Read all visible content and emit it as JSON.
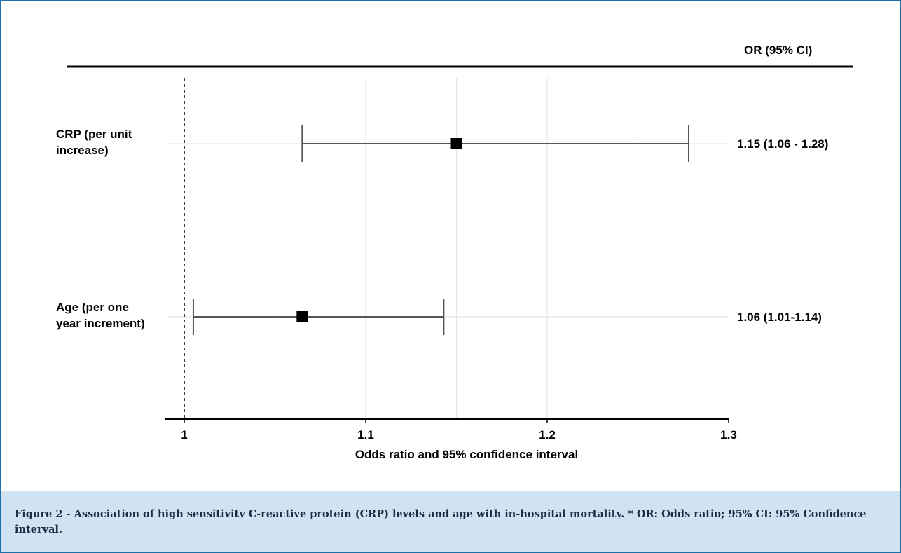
{
  "chart_data": {
    "type": "forest",
    "column_header": "OR (95% CI)",
    "xlabel": "Odds ratio and 95% confidence interval",
    "xlim": [
      1.0,
      1.3
    ],
    "x_ticks": [
      "1",
      "1.1",
      "1.2",
      "1.3"
    ],
    "reference_line": 1.0,
    "grid": true,
    "rows": [
      {
        "label_lines": [
          "CRP (per unit",
          "increase)"
        ],
        "or": 1.15,
        "lower": 1.065,
        "upper": 1.278,
        "text": "1.15 (1.06 - 1.28)"
      },
      {
        "label_lines": [
          "Age (per one",
          "year increment)"
        ],
        "or": 1.065,
        "lower": 1.005,
        "upper": 1.143,
        "text": "1.06 (1.01-1.14)"
      }
    ]
  },
  "caption": "Figure 2 - Association of high sensitivity C-reactive protein (CRP) levels and age with in-hospital mortality. * OR: Odds ratio; 95% CI: 95% Confidence interval.",
  "colors": {
    "border": "#1b6fa6",
    "caption_bg": "#cfe3f3",
    "marks": "#000000",
    "whisker": "#555555",
    "grid": "#e6e6e6"
  }
}
